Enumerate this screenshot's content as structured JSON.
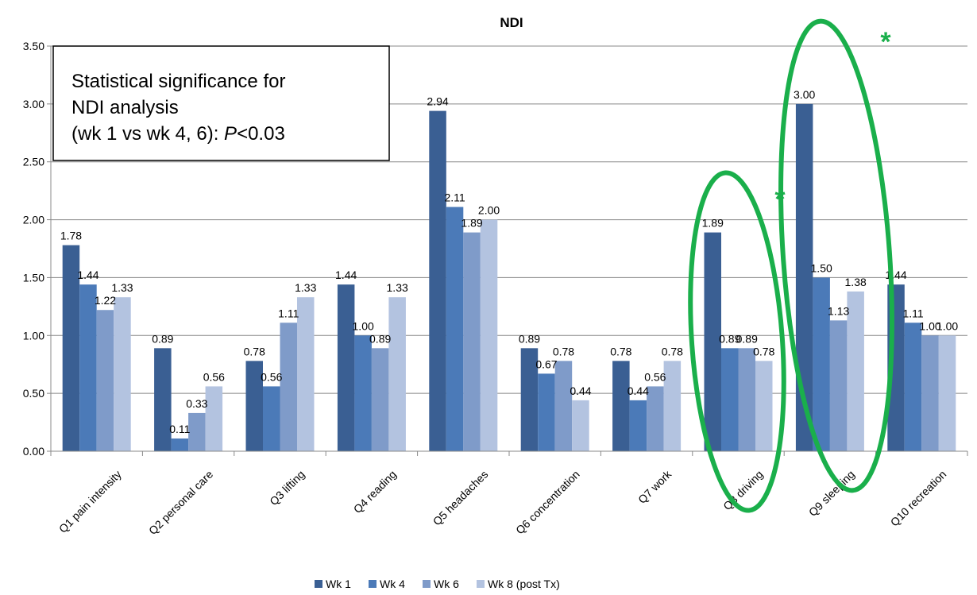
{
  "chart_data": {
    "type": "bar",
    "title": "NDI",
    "xlabel": "",
    "ylabel": "",
    "ylim": [
      0,
      3.5
    ],
    "yticks": [
      "0.00",
      "0.50",
      "1.00",
      "1.50",
      "2.00",
      "2.50",
      "3.00",
      "3.50"
    ],
    "grid": true,
    "legend_position": "bottom",
    "categories": [
      "Q1 pain intensity",
      "Q2 personal care",
      "Q3 lifting",
      "Q4 reading",
      "Q5 headaches",
      "Q6 concentration",
      "Q7 work",
      "Q8 driving",
      "Q9 sleeping",
      "Q10 recreation"
    ],
    "series": [
      {
        "name": "Wk 1",
        "color": "#3a5f93",
        "values": [
          1.78,
          0.89,
          0.78,
          1.44,
          2.94,
          0.89,
          0.78,
          1.89,
          3.0,
          1.44
        ]
      },
      {
        "name": "Wk 4",
        "color": "#4b7ab8",
        "values": [
          1.44,
          0.11,
          0.56,
          1.0,
          2.11,
          0.67,
          0.44,
          0.89,
          1.5,
          1.11
        ]
      },
      {
        "name": "Wk 6",
        "color": "#7f9bc9",
        "values": [
          1.22,
          0.33,
          1.11,
          0.89,
          1.89,
          0.78,
          0.56,
          0.89,
          1.13,
          1.0
        ]
      },
      {
        "name": "Wk 8 (post Tx)",
        "color": "#b3c3e0",
        "values": [
          1.33,
          0.56,
          1.33,
          1.33,
          2.0,
          0.44,
          0.78,
          0.78,
          1.38,
          1.0
        ]
      }
    ],
    "data_labels": [
      [
        "1.78",
        "0.89",
        "0.78",
        "1.44",
        "2.94",
        "0.89",
        "0.78",
        "1.89",
        "3.00",
        "1.44"
      ],
      [
        "1.44",
        "0.11",
        "0.56",
        "1.00",
        "2.11",
        "0.67",
        "0.44",
        "0.89",
        "1.50",
        "1.11"
      ],
      [
        "1.22",
        "0.33",
        "1.11",
        "0.89",
        "1.89",
        "0.78",
        "0.56",
        "0.89",
        "1.13",
        "1.00"
      ],
      [
        "1.33",
        "0.56",
        "1.33",
        "1.33",
        "2.00",
        "0.44",
        "0.78",
        "0.78",
        "1.38",
        "1.00"
      ]
    ],
    "annotation": {
      "line1": "Statistical significance for",
      "line2": "NDI analysis",
      "line3_prefix": "(wk 1 vs wk 4, 6): ",
      "line3_italic": "P",
      "line3_suffix": "<0.03"
    },
    "highlights": [
      {
        "category": "Q8 driving",
        "marker": "*",
        "color": "#1aaf4b"
      },
      {
        "category": "Q9 sleeping",
        "marker": "*",
        "color": "#1aaf4b"
      }
    ]
  }
}
